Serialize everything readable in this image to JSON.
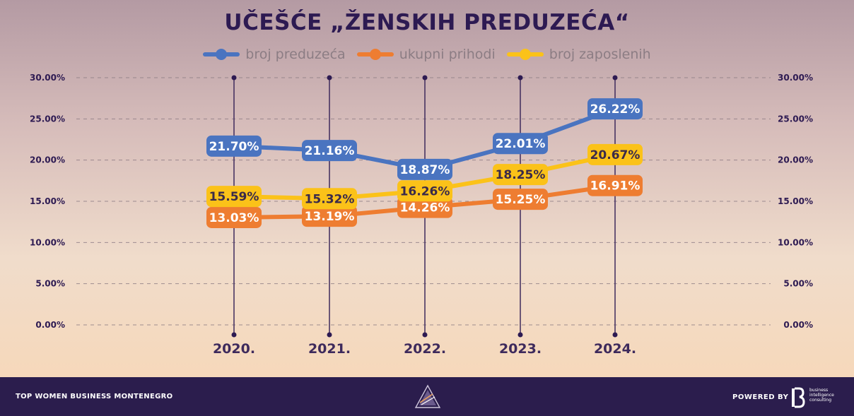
{
  "chart_data": {
    "type": "line",
    "title": "UČEŠĆE „ŽENSKIH PREDUZEĆA“",
    "categories": [
      "2020.",
      "2021.",
      "2022.",
      "2023.",
      "2024."
    ],
    "series": [
      {
        "name": "broj preduzeća",
        "color": "#4a74c0",
        "label_text_color": "#ffffff",
        "values": [
          21.7,
          21.16,
          18.87,
          22.01,
          26.22
        ],
        "labels": [
          "21.70%",
          "21.16%",
          "18.87%",
          "22.01%",
          "26.22%"
        ]
      },
      {
        "name": "ukupni prihodi",
        "color": "#ee7d31",
        "label_text_color": "#ffffff",
        "values": [
          13.03,
          13.19,
          14.26,
          15.25,
          16.91
        ],
        "labels": [
          "13.03%",
          "13.19%",
          "14.26%",
          "15.25%",
          "16.91%"
        ]
      },
      {
        "name": "broj zaposlenih",
        "color": "#fbc219",
        "label_text_color": "#3a2a4a",
        "values": [
          15.59,
          15.32,
          16.26,
          18.25,
          20.67
        ],
        "labels": [
          "15.59%",
          "15.32%",
          "16.26%",
          "18.25%",
          "20.67%"
        ]
      }
    ],
    "ylim": [
      0,
      30
    ],
    "yticks": [
      0,
      5,
      10,
      15,
      20,
      25,
      30
    ],
    "ytick_labels": [
      "0.00%",
      "5.00%",
      "10.00%",
      "15.00%",
      "20.00%",
      "25.00%",
      "30.00%"
    ],
    "grid": true,
    "legend_position": "top-center",
    "xlabel": "",
    "ylabel": ""
  },
  "footer": {
    "left_prefix": "TOP WOMEN",
    "left_suffix": "BUSINESS MONTENEGRO",
    "powered_by": "POWERED BY",
    "bi_text": "business intelligence consulting"
  },
  "colors": {
    "title": "#2d1a52",
    "footer_bg": "#2b1d4d",
    "vline": "#3e2a5c",
    "grid": "#8a7a82"
  }
}
